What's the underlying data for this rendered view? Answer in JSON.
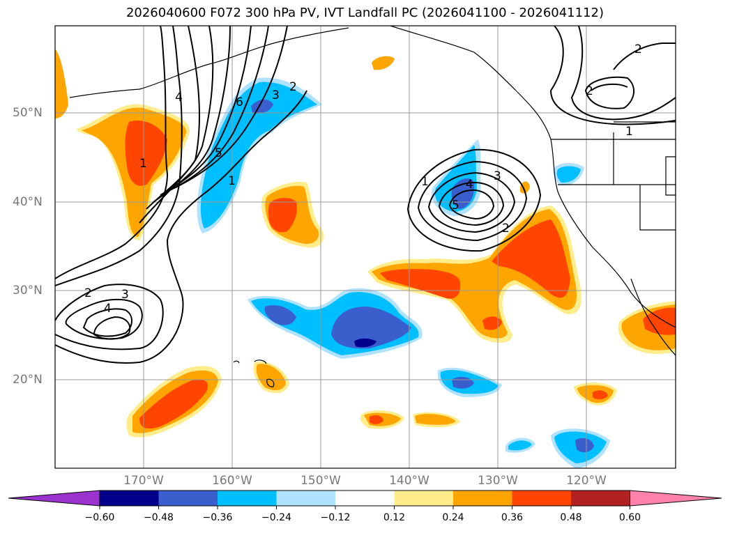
{
  "title": "2026040600 F072 300 hPa PV, IVT Landfall PC (2026041100 - 2026041112)",
  "lat_labels": [
    "50°N",
    "40°N",
    "30°N",
    "20°N"
  ],
  "lon_labels": [
    "170°W",
    "160°W",
    "150°W",
    "140°W",
    "130°W",
    "120°W"
  ],
  "colorbar": {
    "ticks": [
      "−0.60",
      "−0.48",
      "−0.36",
      "−0.24",
      "−0.12",
      "0.12",
      "0.24",
      "0.36",
      "0.48",
      "0.60"
    ],
    "colors": [
      "#9a32cd",
      "#00008b",
      "#3a5fcd",
      "#00bfff",
      "#b0e2ff",
      "#ffffff",
      "#ffec8b",
      "#ffa500",
      "#ff4500",
      "#b22222",
      "#ff82ab"
    ]
  },
  "contour_labels": {
    "pv_left": [
      "1",
      "4",
      "6",
      "3",
      "2",
      "5",
      "1"
    ],
    "pv_low_sw": [
      "2",
      "3",
      "4"
    ],
    "pv_low_mid": [
      "1",
      "4",
      "3",
      "2",
      "5"
    ],
    "pv_ne": [
      "2",
      "2",
      "1"
    ]
  }
}
